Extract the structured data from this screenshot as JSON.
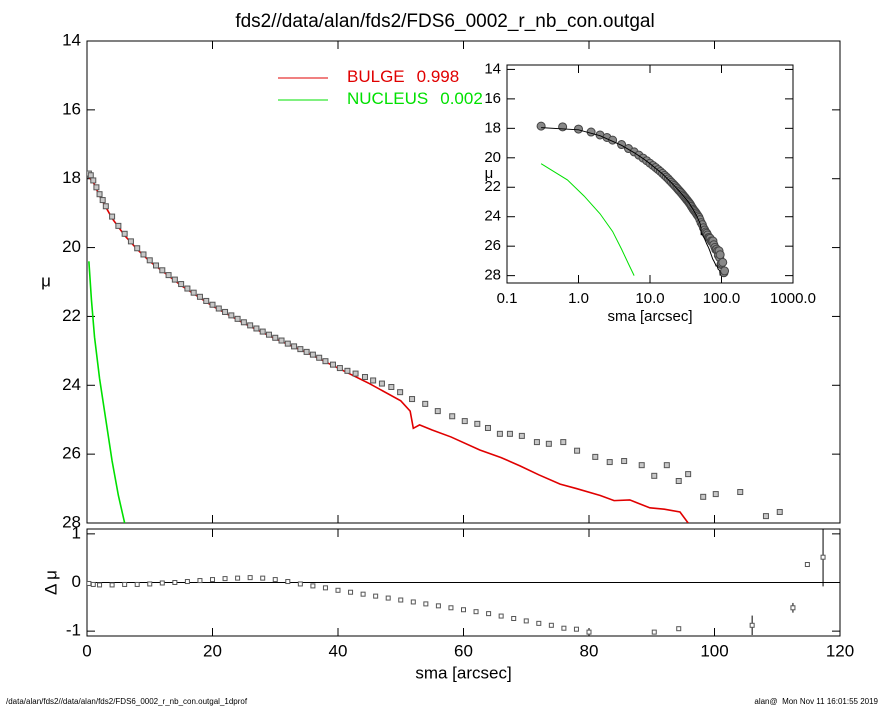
{
  "chart_data": [
    {
      "type": "scatter",
      "title": "fds2//data/alan/fds2/FDS6_0002_r_nb_con.outgal",
      "ylabel": "μ",
      "xlim": [
        0,
        120
      ],
      "ylim": [
        28,
        14
      ],
      "yticks": [
        14,
        16,
        18,
        20,
        22,
        24,
        26,
        28
      ],
      "points": {
        "color": "#555555",
        "x": [
          0.3,
          0.6,
          1.0,
          1.5,
          2.0,
          2.5,
          3,
          4,
          5,
          6,
          7,
          8,
          9,
          10,
          11,
          12,
          13,
          14,
          15,
          16,
          17,
          18,
          19,
          20,
          21,
          22,
          23,
          24,
          25,
          26,
          27,
          28,
          29,
          30,
          31,
          32,
          33,
          34,
          35,
          36,
          37,
          38,
          39.2,
          40.3,
          41.5,
          42.8,
          44.3,
          45.6,
          47,
          48.5,
          49.9,
          51.8,
          53.9,
          55.9,
          58.2,
          60.2,
          62.2,
          63.9,
          65.8,
          67.4,
          69.3,
          71.7,
          73.6,
          75.9,
          78.1,
          81.0,
          83.3,
          85.6,
          88.4,
          90.4,
          92.4,
          94.3,
          95.8,
          98.2,
          100.2,
          104.1,
          108.2,
          110.4
        ],
        "values": [
          17.85,
          17.9,
          18.05,
          18.25,
          18.45,
          18.62,
          18.8,
          19.1,
          19.37,
          19.6,
          19.82,
          20.02,
          20.2,
          20.37,
          20.52,
          20.66,
          20.8,
          20.93,
          21.06,
          21.19,
          21.31,
          21.43,
          21.55,
          21.66,
          21.77,
          21.87,
          21.97,
          22.07,
          22.17,
          22.26,
          22.35,
          22.44,
          22.53,
          22.62,
          22.7,
          22.79,
          22.87,
          22.95,
          23.03,
          23.11,
          23.2,
          23.3,
          23.4,
          23.5,
          23.58,
          23.66,
          23.76,
          23.86,
          23.95,
          24.05,
          24.2,
          24.4,
          24.54,
          24.75,
          24.9,
          25.04,
          25.12,
          25.24,
          25.41,
          25.41,
          25.47,
          25.65,
          25.7,
          25.65,
          25.9,
          26.08,
          26.23,
          26.2,
          26.32,
          26.63,
          26.32,
          26.78,
          26.58,
          27.24,
          27.16,
          27.1,
          27.8,
          27.68
        ]
      },
      "series": [
        {
          "name": "BULGE",
          "fraction": 0.998,
          "color": "#e00000",
          "x": [
            0.3,
            1,
            2,
            4,
            6,
            8,
            10,
            15,
            20,
            25,
            30,
            35,
            40,
            45,
            50,
            51.5,
            52,
            53,
            55,
            58,
            62.6,
            66,
            69,
            72,
            75.4,
            78,
            81.8,
            84,
            86.5,
            89.7,
            92,
            94.5,
            95.8
          ],
          "values": [
            17.95,
            18.1,
            18.5,
            19.15,
            19.65,
            20.05,
            20.4,
            21.1,
            21.7,
            22.2,
            22.65,
            23.05,
            23.5,
            23.95,
            24.45,
            24.75,
            25.25,
            25.15,
            25.3,
            25.5,
            25.88,
            26.1,
            26.34,
            26.6,
            26.87,
            27.0,
            27.2,
            27.35,
            27.33,
            27.56,
            27.6,
            27.68,
            28.0
          ]
        },
        {
          "name": "NUCLEUS",
          "fraction": 0.002,
          "color": "#00e000",
          "x": [
            0.3,
            0.7,
            1.2,
            2,
            3,
            4,
            5,
            6
          ],
          "values": [
            20.4,
            21.5,
            22.6,
            23.8,
            25.0,
            26.2,
            27.2,
            28.0
          ]
        }
      ]
    },
    {
      "type": "scatter",
      "xlabel": "sma [arcsec]",
      "ylabel": "Δ μ",
      "zero_line": true,
      "xlim": [
        0,
        120
      ],
      "xticks": [
        0,
        20,
        40,
        60,
        80,
        100,
        120
      ],
      "ylim": [
        -1.1,
        1.1
      ],
      "yticks": [
        -1,
        0,
        1
      ],
      "color": "#555555",
      "x": [
        0.3,
        1,
        2,
        4,
        6,
        8,
        10,
        12,
        14,
        16,
        18,
        20,
        22,
        24,
        26,
        28,
        30,
        32,
        34,
        36,
        38,
        40,
        42,
        44,
        46,
        48,
        50,
        52,
        54,
        56,
        58,
        60,
        62,
        64,
        66,
        68,
        70,
        72,
        74,
        76,
        78,
        80,
        90.4,
        94.3,
        106,
        112.5,
        114.8,
        117.3
      ],
      "values": [
        -0.02,
        -0.04,
        -0.05,
        -0.05,
        -0.04,
        -0.04,
        -0.03,
        -0.01,
        0,
        0.02,
        0.04,
        0.06,
        0.08,
        0.09,
        0.1,
        0.09,
        0.06,
        0.02,
        -0.03,
        -0.07,
        -0.11,
        -0.16,
        -0.2,
        -0.24,
        -0.28,
        -0.32,
        -0.36,
        -0.4,
        -0.44,
        -0.48,
        -0.52,
        -0.56,
        -0.6,
        -0.64,
        -0.69,
        -0.74,
        -0.79,
        -0.84,
        -0.88,
        -0.94,
        -0.96,
        -1.02,
        -1.02,
        -0.95,
        -0.88,
        -0.52,
        0.37,
        0.52
      ],
      "errors": [
        null,
        null,
        null,
        null,
        null,
        null,
        null,
        null,
        null,
        null,
        null,
        null,
        null,
        null,
        null,
        null,
        null,
        null,
        null,
        null,
        null,
        null,
        null,
        null,
        null,
        null,
        null,
        null,
        null,
        null,
        null,
        null,
        null,
        null,
        null,
        null,
        null,
        null,
        null,
        null,
        null,
        null,
        null,
        null,
        0.2,
        0.1,
        null,
        0.6
      ]
    },
    {
      "type": "scatter",
      "log_x": true,
      "xlabel": "sma [arcsec]",
      "ylabel": "μ",
      "xlim": [
        0.1,
        1000
      ],
      "xticks": [
        {
          "value": 0.1,
          "label": "0.1"
        },
        {
          "value": 1,
          "label": "1.0"
        },
        {
          "value": 10,
          "label": "10.0"
        },
        {
          "value": 100,
          "label": "100.0"
        },
        {
          "value": 1000,
          "label": "1000.0"
        }
      ],
      "ylim": [
        28.5,
        13.7
      ],
      "yticks": [
        14,
        16,
        18,
        20,
        22,
        24,
        26,
        28
      ],
      "model_color": "#000000"
    }
  ],
  "footer": {
    "left": "/data/alan/fds2//data/alan/fds2/FDS6_0002_r_nb_con.outgal_1dprof",
    "right": "alan@  Mon Nov 11 16:01:55 2019"
  }
}
